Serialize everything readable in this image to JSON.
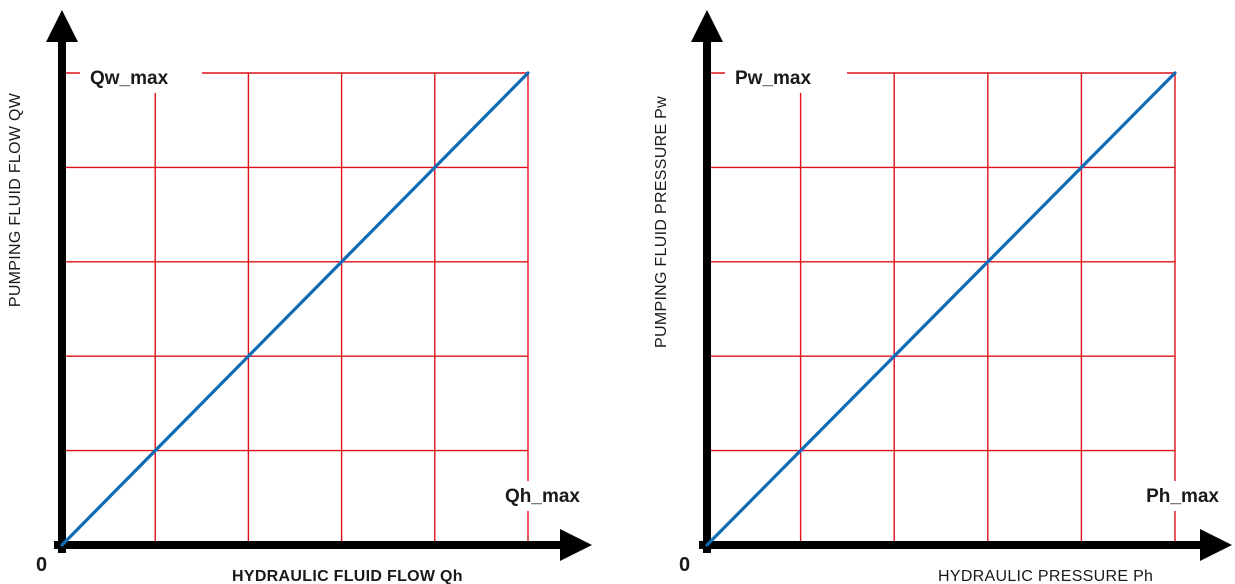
{
  "colors": {
    "grid": "#e0101a",
    "series": "#0d6cb5",
    "axis": "#000000"
  },
  "chart_data": [
    {
      "type": "line",
      "title": "",
      "xlabel": "HYDRAULIC FLUID FLOW Qh",
      "ylabel": "PUMPING FLUID FLOW QW",
      "origin_label": "0",
      "x_max_label": "Qh_max",
      "y_max_label": "Qw_max",
      "xlim": [
        0,
        1
      ],
      "ylim": [
        0,
        1
      ],
      "grid": true,
      "grid_divisions": {
        "x": 5,
        "y": 5
      },
      "series": [
        {
          "x": [
            0,
            1
          ],
          "y": [
            0,
            1
          ],
          "color": "#0d6cb5"
        }
      ]
    },
    {
      "type": "line",
      "title": "",
      "xlabel": "HYDRAULIC PRESSURE Ph",
      "ylabel": "PUMPING FLUID PRESSURE Pw",
      "origin_label": "0",
      "x_max_label": "Ph_max",
      "y_max_label": "Pw_max",
      "xlim": [
        0,
        1
      ],
      "ylim": [
        0,
        1
      ],
      "grid": true,
      "grid_divisions": {
        "x": 5,
        "y": 5
      },
      "series": [
        {
          "x": [
            0,
            1
          ],
          "y": [
            0,
            1
          ],
          "color": "#0d6cb5"
        }
      ]
    }
  ]
}
